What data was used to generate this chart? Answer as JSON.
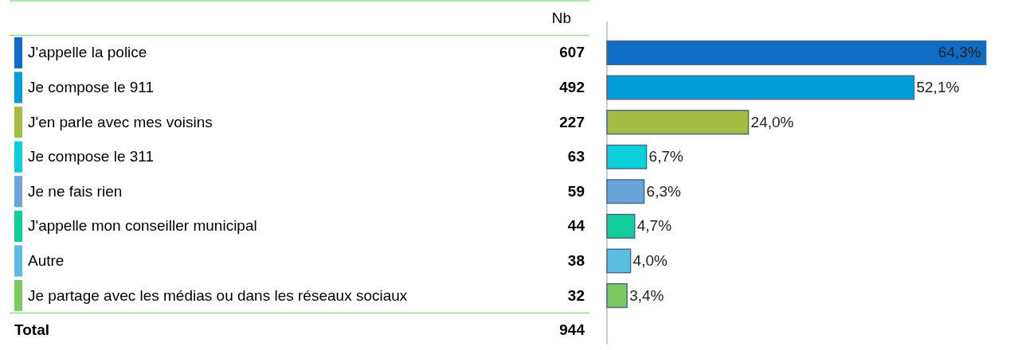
{
  "chart_data": {
    "type": "bar",
    "orientation": "horizontal",
    "categories": [
      "J'appelle la police",
      "Je compose le 911",
      "J'en parle avec mes voisins",
      "Je compose le 311",
      "Je ne fais rien",
      "J'appelle mon conseiller municipal",
      "Autre",
      "Je partage avec les médias ou dans les réseaux sociaux"
    ],
    "values": [
      64.3,
      52.1,
      24.0,
      6.7,
      6.3,
      4.7,
      4.0,
      3.4
    ],
    "value_labels": [
      "64,3%",
      "52,1%",
      "24,0%",
      "6,7%",
      "6,3%",
      "4,7%",
      "4,0%",
      "3,4%"
    ],
    "colors": [
      "#0f6cc6",
      "#009dd9",
      "#a5bd44",
      "#0bd0d9",
      "#6aa4d8",
      "#10cf9b",
      "#5bbde2",
      "#7cca62"
    ],
    "annotations": [
      "Nb",
      "607",
      "492",
      "227",
      "63",
      "59",
      "44",
      "38",
      "32",
      "Total",
      "944"
    ]
  }
}
